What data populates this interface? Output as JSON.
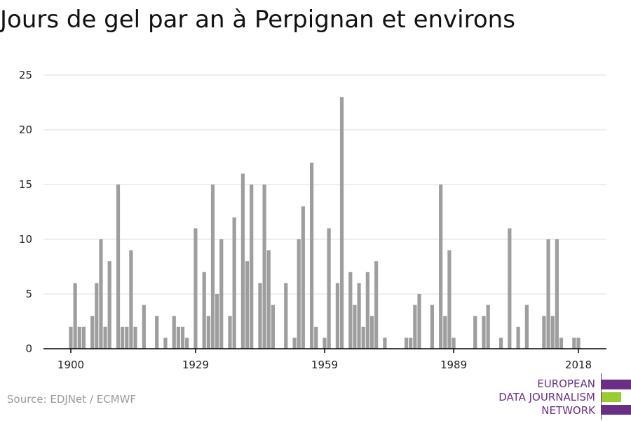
{
  "title": "Jours de gel par an à Perpignan et environs",
  "source": "Source: EDJNet / ECMWF",
  "logo": {
    "line1": "EUROPEAN",
    "line2": "DATA JOURNALISM",
    "line3": "NETWORK",
    "colors": [
      "#6b2e86",
      "#99cc33",
      "#6b2e86"
    ]
  },
  "colors": {
    "bar": "#9e9e9e",
    "grid": "#dddddd",
    "axis": "#000000",
    "tick_text": "#222222"
  },
  "chart_data": {
    "type": "bar",
    "x": [
      1900,
      1901,
      1902,
      1903,
      1904,
      1905,
      1906,
      1907,
      1908,
      1909,
      1910,
      1911,
      1912,
      1913,
      1914,
      1915,
      1916,
      1917,
      1918,
      1919,
      1920,
      1921,
      1922,
      1923,
      1924,
      1925,
      1926,
      1927,
      1928,
      1929,
      1930,
      1931,
      1932,
      1933,
      1934,
      1935,
      1936,
      1937,
      1938,
      1939,
      1940,
      1941,
      1942,
      1943,
      1944,
      1945,
      1946,
      1947,
      1948,
      1949,
      1950,
      1951,
      1952,
      1953,
      1954,
      1955,
      1956,
      1957,
      1958,
      1959,
      1960,
      1961,
      1962,
      1963,
      1964,
      1965,
      1966,
      1967,
      1968,
      1969,
      1970,
      1971,
      1972,
      1973,
      1974,
      1975,
      1976,
      1977,
      1978,
      1979,
      1980,
      1981,
      1982,
      1983,
      1984,
      1985,
      1986,
      1987,
      1988,
      1989,
      1990,
      1991,
      1992,
      1993,
      1994,
      1995,
      1996,
      1997,
      1998,
      1999,
      2000,
      2001,
      2002,
      2003,
      2004,
      2005,
      2006,
      2007,
      2008,
      2009,
      2010,
      2011,
      2012,
      2013,
      2014,
      2015,
      2016,
      2017,
      2018
    ],
    "values": [
      2,
      6,
      2,
      2,
      0,
      3,
      6,
      10,
      2,
      8,
      0,
      15,
      2,
      2,
      9,
      2,
      0,
      4,
      0,
      0,
      3,
      0,
      1,
      0,
      3,
      2,
      2,
      1,
      0,
      11,
      0,
      7,
      3,
      15,
      5,
      10,
      0,
      3,
      12,
      0,
      16,
      8,
      15,
      0,
      6,
      15,
      9,
      4,
      0,
      0,
      6,
      0,
      1,
      10,
      13,
      0,
      17,
      2,
      0,
      1,
      11,
      0,
      6,
      23,
      0,
      7,
      4,
      6,
      2,
      7,
      3,
      8,
      0,
      1,
      0,
      0,
      0,
      0,
      1,
      1,
      4,
      5,
      0,
      0,
      4,
      0,
      15,
      3,
      9,
      1,
      0,
      0,
      0,
      0,
      3,
      0,
      3,
      4,
      0,
      0,
      1,
      0,
      11,
      0,
      2,
      0,
      4,
      0,
      0,
      0,
      3,
      10,
      3,
      10,
      1,
      0,
      0,
      1,
      1
    ],
    "xticks": [
      1900,
      1929,
      1959,
      1989,
      2018
    ],
    "yticks": [
      0,
      5,
      10,
      15,
      20,
      25
    ],
    "ylim": [
      0,
      25
    ],
    "xlim": [
      1900,
      2018
    ],
    "grid": true,
    "title": "Jours de gel par an à Perpignan et environs",
    "xlabel": "",
    "ylabel": ""
  }
}
